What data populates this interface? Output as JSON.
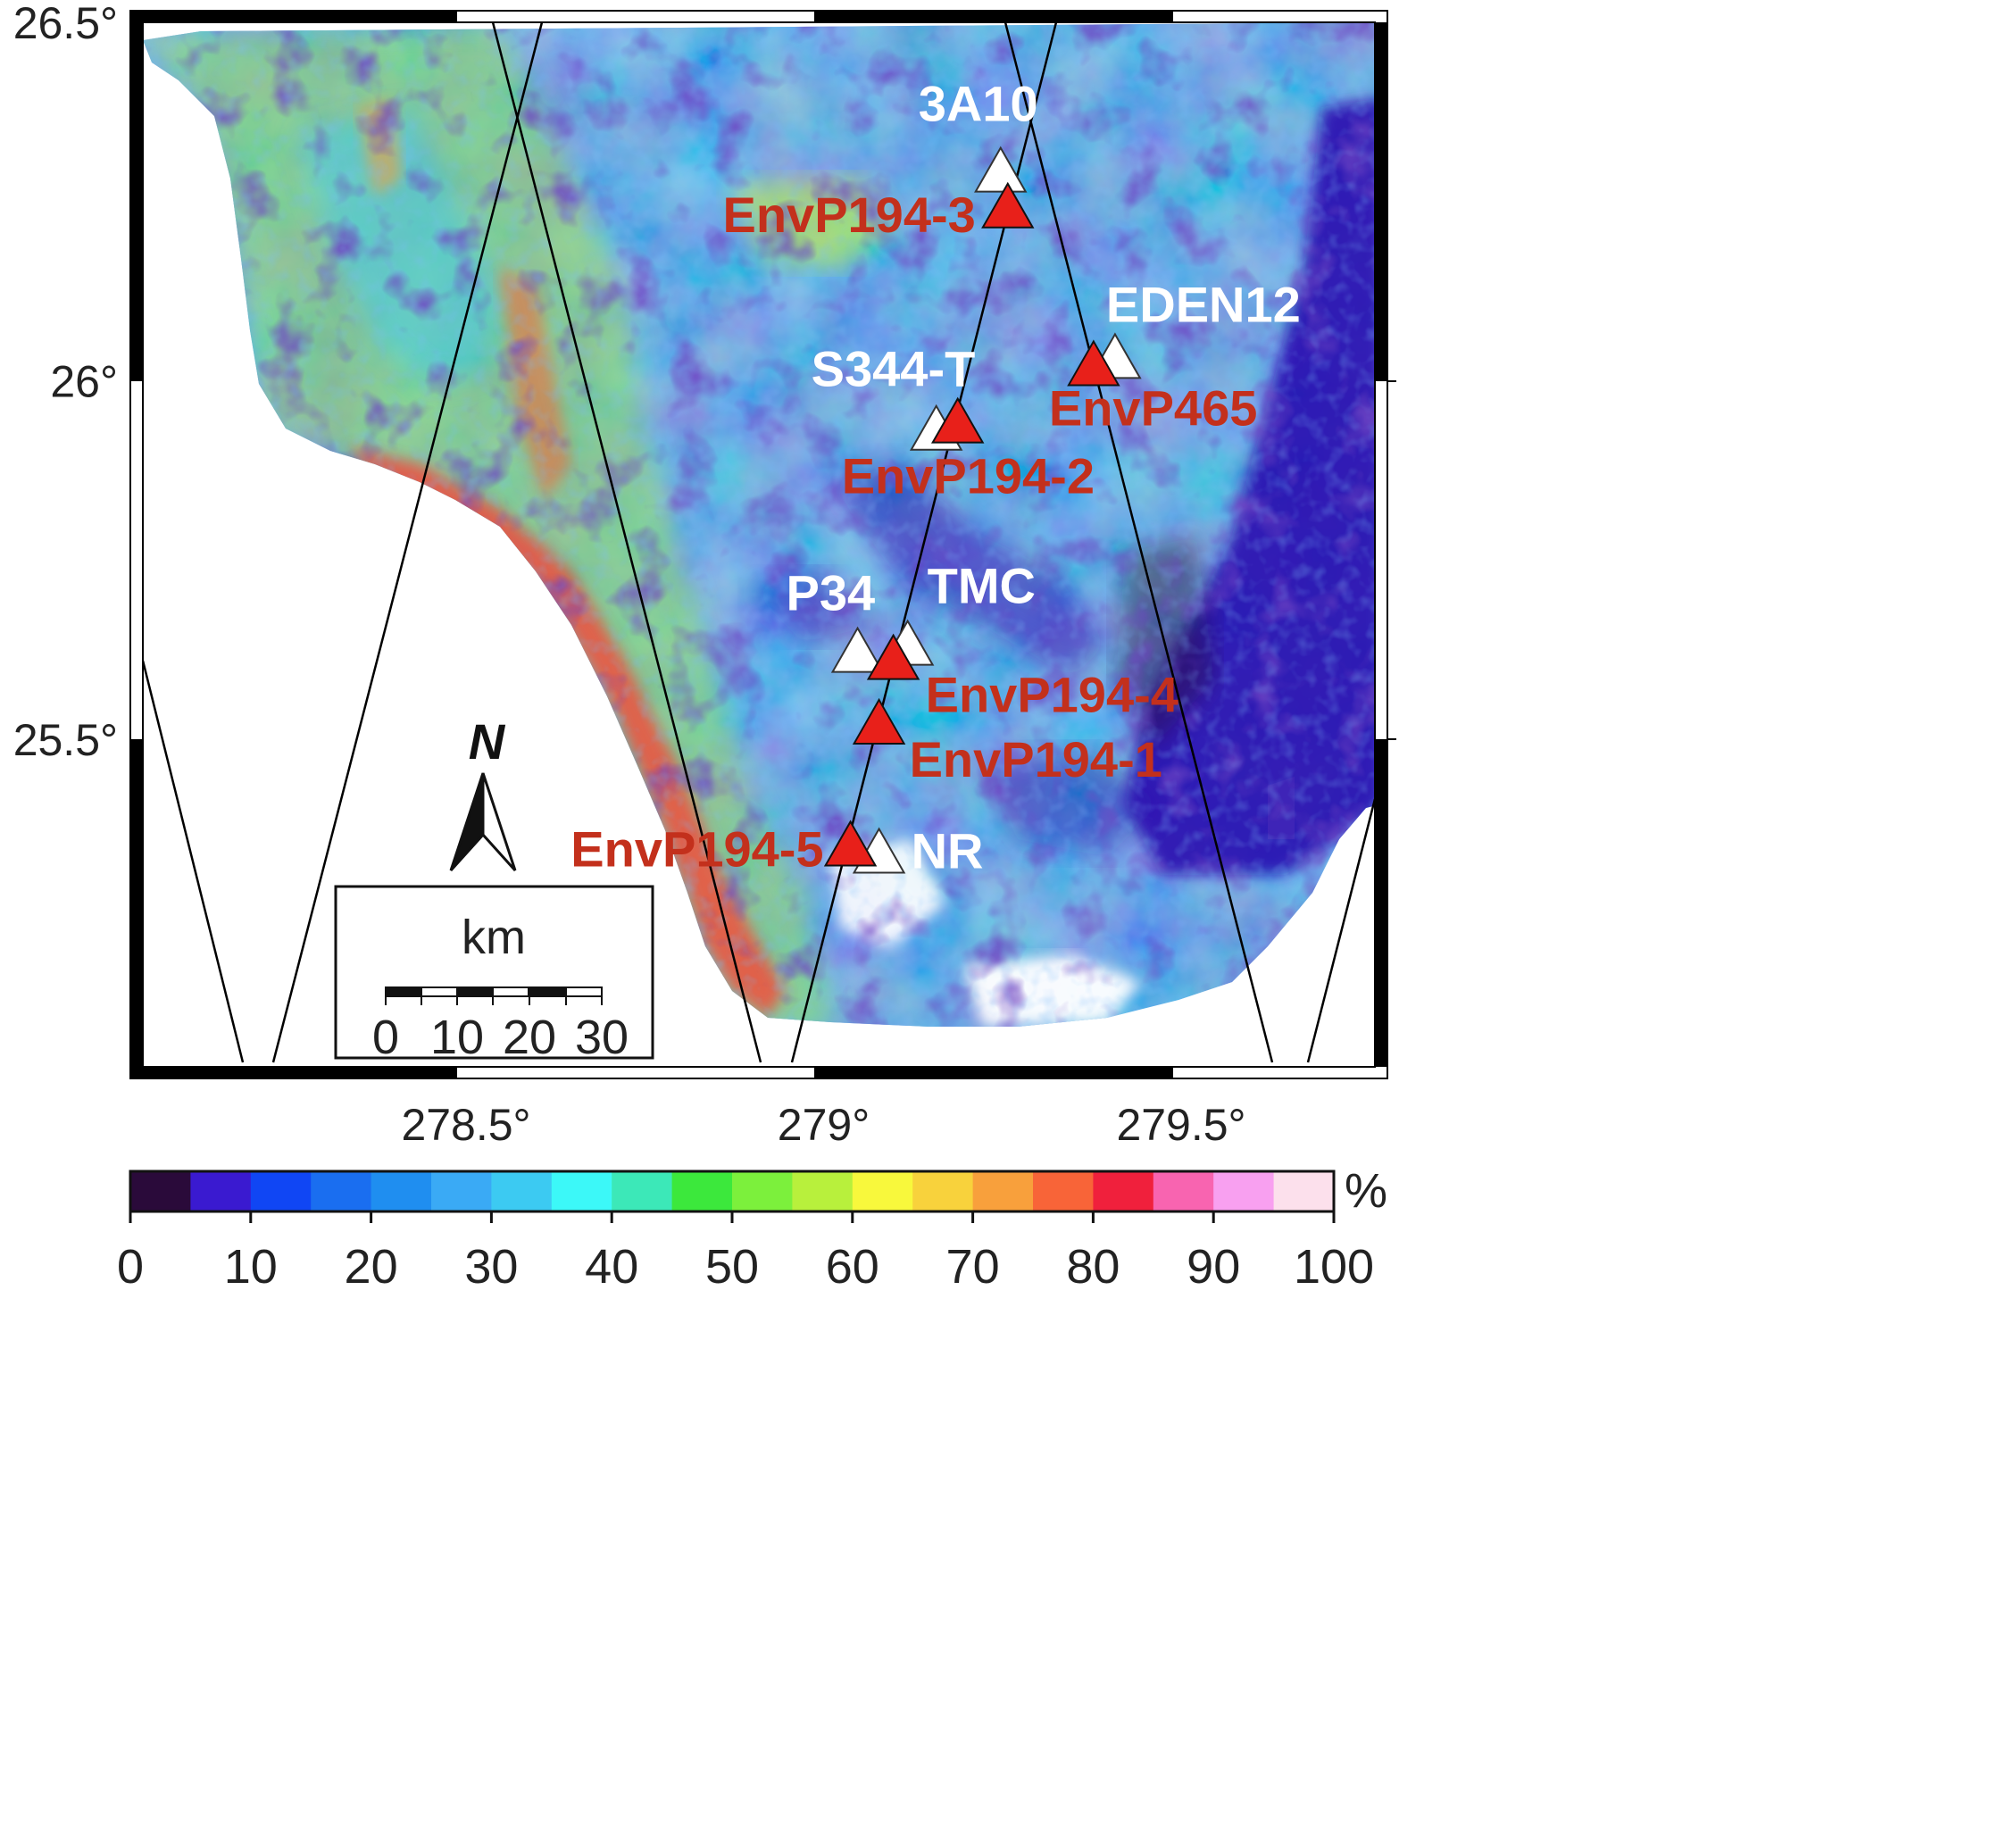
{
  "map": {
    "lon_range": [
      278.1,
      279.8
    ],
    "lat_range": [
      25.05,
      26.5
    ],
    "lon_ticks": [
      {
        "value": 278.5,
        "label": "278.5°"
      },
      {
        "value": 279.0,
        "label": "279°"
      },
      {
        "value": 279.5,
        "label": "279.5°"
      }
    ],
    "lat_ticks": [
      {
        "value": 26.5,
        "label": "26.5°"
      },
      {
        "value": 26.0,
        "label": "26°"
      },
      {
        "value": 25.5,
        "label": "25.5°"
      }
    ],
    "colors": {
      "water": "#ffffff",
      "land_base": "#3b8fe8",
      "white_station": "#ffffff",
      "red_station": "#e8201a",
      "red_label": "#c3301c",
      "swath_line": "#000000"
    }
  },
  "stations_white": [
    {
      "name": "3A10",
      "lon": 279.26,
      "lat": 26.29
    },
    {
      "name": "EDEN12",
      "lon": 279.42,
      "lat": 26.03
    },
    {
      "name": "S344-T",
      "lon": 279.17,
      "lat": 25.93
    },
    {
      "name": "P34",
      "lon": 279.06,
      "lat": 25.62
    },
    {
      "name": "TMC",
      "lon": 279.13,
      "lat": 25.63
    },
    {
      "name": "NR",
      "lon": 279.09,
      "lat": 25.34
    }
  ],
  "stations_red": [
    {
      "name": "EnvP194-3",
      "lon": 279.27,
      "lat": 26.24
    },
    {
      "name": "EnvP465",
      "lon": 279.39,
      "lat": 26.02
    },
    {
      "name": "EnvP194-2",
      "lon": 279.2,
      "lat": 25.94
    },
    {
      "name": "EnvP194-4",
      "lon": 279.11,
      "lat": 25.61
    },
    {
      "name": "EnvP194-1",
      "lon": 279.09,
      "lat": 25.52
    },
    {
      "name": "EnvP194-5",
      "lon": 279.05,
      "lat": 25.35
    }
  ],
  "north_arrow": {
    "label": "N"
  },
  "scale_bar": {
    "unit": "km",
    "ticks": [
      "0",
      "10",
      "20",
      "30"
    ]
  },
  "colorbar": {
    "unit": "%",
    "min": 0,
    "max": 100,
    "ticks": [
      "0",
      "10",
      "20",
      "30",
      "40",
      "50",
      "60",
      "70",
      "80",
      "90",
      "100"
    ],
    "colors": [
      "#2a0a3a",
      "#3a1ad0",
      "#1046f4",
      "#1a6ef0",
      "#1f8ef0",
      "#3aaaf5",
      "#3ccaf2",
      "#3cf8f8",
      "#3ce8b8",
      "#3ce83c",
      "#7cf03c",
      "#b8f03c",
      "#f8f83c",
      "#f8d23c",
      "#f8a03c",
      "#f86438",
      "#f0203c",
      "#f864b0",
      "#f8a0f0",
      "#fce0ec"
    ]
  }
}
